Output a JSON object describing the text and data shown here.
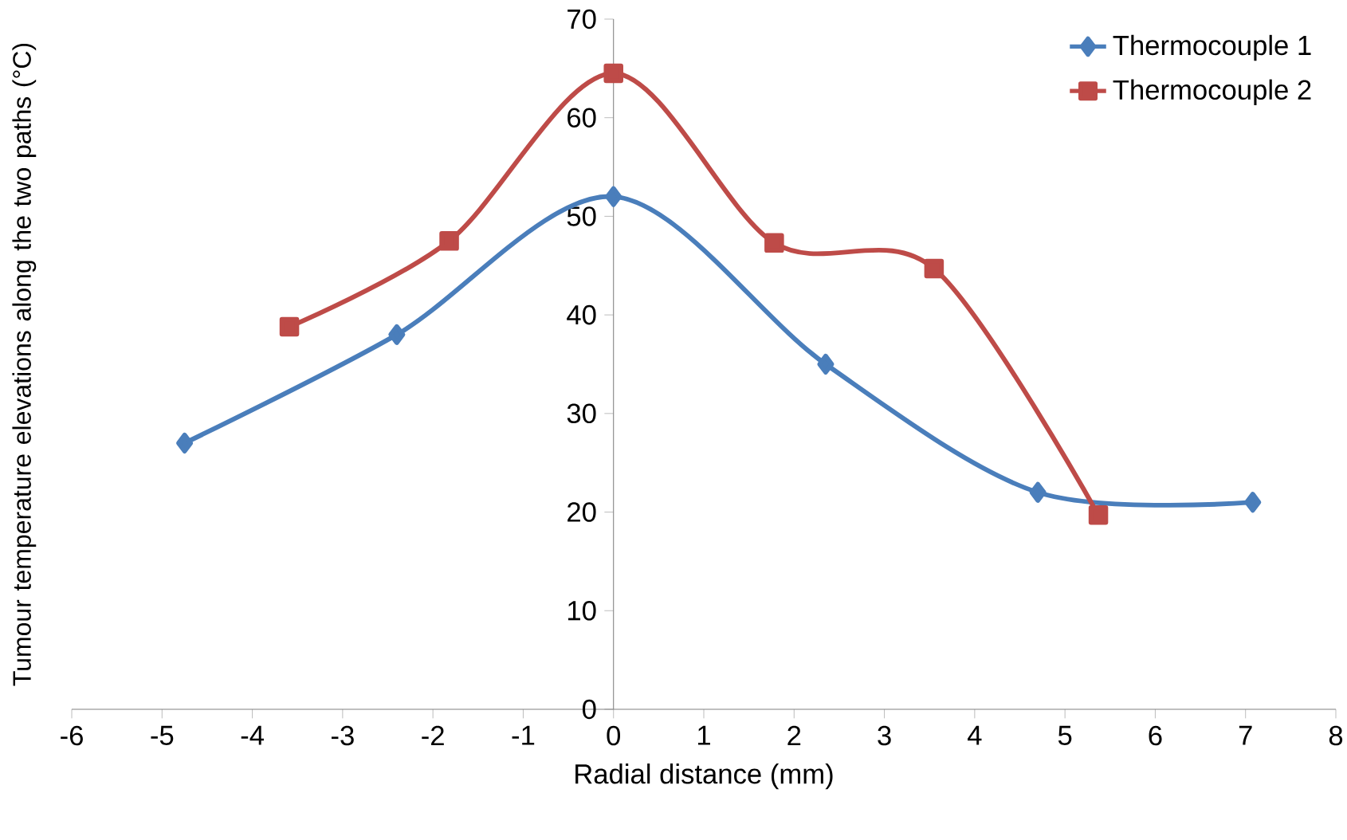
{
  "chart_data": {
    "type": "line",
    "xlabel": "Radial distance (mm)",
    "ylabel": "Tumour temperature elevations along the two paths (°C)",
    "xlim": [
      -6,
      8
    ],
    "ylim": [
      0,
      70
    ],
    "xticks": [
      -6,
      -5,
      -4,
      -3,
      -2,
      -1,
      0,
      1,
      2,
      3,
      4,
      5,
      6,
      7,
      8
    ],
    "yticks": [
      0,
      10,
      20,
      30,
      40,
      50,
      60,
      70
    ],
    "legend": "top right",
    "line_style": "solid",
    "series": [
      {
        "name": "Thermocouple 1",
        "color": "#4a7ebb",
        "marker": "diamond",
        "x": [
          -4.75,
          -2.4,
          0,
          2.35,
          4.7,
          7.08
        ],
        "values": [
          27,
          38,
          52,
          35,
          22,
          21
        ]
      },
      {
        "name": "Thermocouple 2",
        "color": "#be4b48",
        "marker": "square",
        "x": [
          -3.59,
          -1.82,
          0,
          1.78,
          3.55,
          5.37
        ],
        "values": [
          38.8,
          47.5,
          64.5,
          47.3,
          44.7,
          19.7
        ]
      }
    ]
  }
}
